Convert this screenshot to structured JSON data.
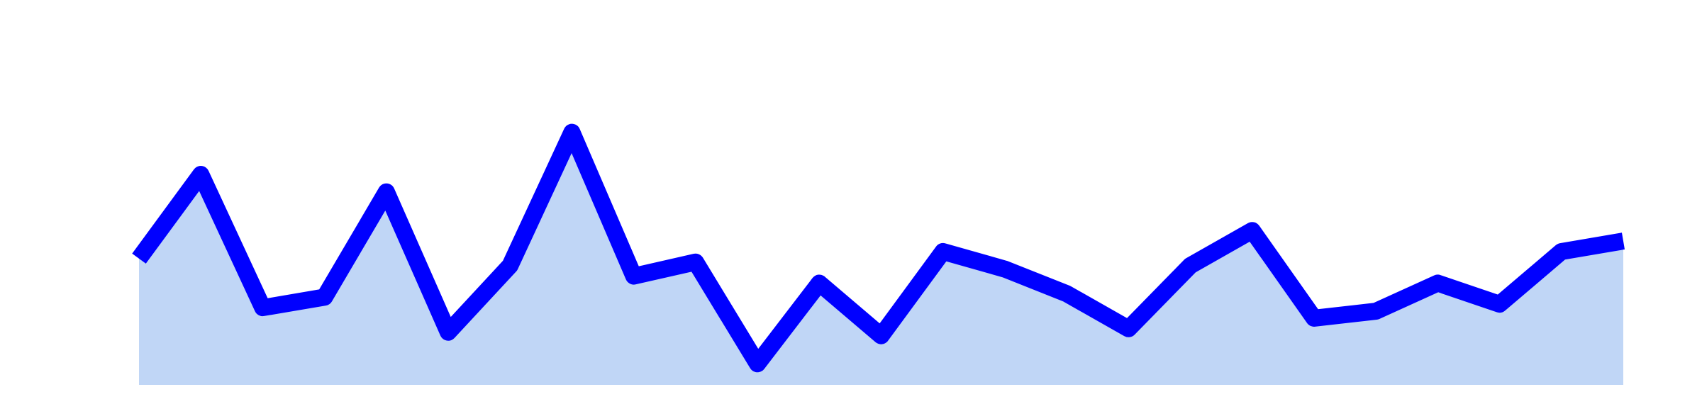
{
  "chart_data": {
    "type": "area",
    "x": [
      0,
      1,
      2,
      3,
      4,
      5,
      6,
      7,
      8,
      9,
      10,
      11,
      12,
      13,
      14,
      15,
      16,
      17,
      18,
      19,
      20,
      21,
      22,
      23,
      24
    ],
    "series": [
      {
        "values": [
          36,
          60,
          22,
          25,
          55,
          15,
          34,
          72,
          31,
          35,
          6,
          29,
          14,
          38,
          33,
          26,
          16,
          34,
          44,
          19,
          21,
          29,
          23,
          38,
          41
        ]
      }
    ],
    "title": "",
    "xlabel": "",
    "ylabel": "",
    "ylim": [
      0,
      100
    ],
    "grid": false,
    "legend": "none",
    "colors": {
      "line": "#0000ff",
      "fill": "#c0d6f6"
    }
  }
}
